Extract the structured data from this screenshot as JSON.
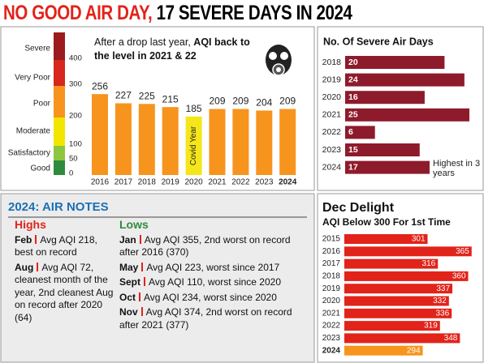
{
  "title": {
    "highlight": "NO GOOD AIR DAY,",
    "rest": "17 SEVERE DAYS IN 2024"
  },
  "chart_data": [
    {
      "type": "bar",
      "annotation": {
        "intro": "After a drop last year,",
        "highlight": "AQI back to the level in 2021 & 22"
      },
      "categories": [
        "2016",
        "2017",
        "2018",
        "2019",
        "2020",
        "2021",
        "2022",
        "2023",
        "2024"
      ],
      "values": [
        256,
        227,
        225,
        215,
        185,
        209,
        209,
        204,
        209
      ],
      "colors": [
        "#f7941d",
        "#f7941d",
        "#f7941d",
        "#f7941d",
        "#f5e61a",
        "#f7941d",
        "#f7941d",
        "#f7941d",
        "#f7941d"
      ],
      "bar_notes": [
        null,
        null,
        null,
        null,
        "Covid Year",
        null,
        null,
        null,
        null
      ],
      "ylim": [
        0,
        300
      ],
      "aqi_scale": {
        "categories": [
          "Severe",
          "Very Poor",
          "Poor",
          "Moderate",
          "Satisfactory",
          "Good"
        ],
        "thresholds": [
          400,
          300,
          200,
          100,
          50,
          0
        ],
        "colors": [
          "#9b1b1f",
          "#d7261e",
          "#f7941d",
          "#f2e600",
          "#8dc63f",
          "#2e8b3e"
        ]
      }
    },
    {
      "type": "barh",
      "title": "No. Of Severe Air Days",
      "categories": [
        "2018",
        "2019",
        "2020",
        "2021",
        "2022",
        "2023",
        "2024"
      ],
      "values": [
        20,
        24,
        16,
        25,
        6,
        15,
        17
      ],
      "color": "#8e1b2b",
      "xlim": [
        0,
        25
      ],
      "annotation": "Highest in 3 years"
    },
    {
      "type": "barh",
      "title": "Dec Delight",
      "subtitle": "AQI Below 300 For 1st Time",
      "categories": [
        "2015",
        "2016",
        "2017",
        "2018",
        "2019",
        "2020",
        "2021",
        "2022",
        "2023",
        "2024"
      ],
      "values": [
        301,
        365,
        316,
        360,
        337,
        332,
        336,
        319,
        348,
        294
      ],
      "colors": [
        "#e2231a",
        "#e2231a",
        "#e2231a",
        "#e2231a",
        "#e2231a",
        "#e2231a",
        "#e2231a",
        "#e2231a",
        "#e2231a",
        "#f7941d"
      ],
      "xlim": [
        180,
        370
      ]
    }
  ],
  "notes": {
    "heading": "2024: AIR NOTES",
    "highs": {
      "title": "Highs",
      "items": [
        {
          "month": "Feb",
          "text": "Avg AQI 218, best on record"
        },
        {
          "month": "Aug",
          "text": "Avg AQI 72, cleanest month of the year, 2nd cleanest Aug on record after 2020 (64)"
        }
      ]
    },
    "lows": {
      "title": "Lows",
      "items": [
        {
          "month": "Jan",
          "text": "Avg AQI 355, 2nd worst on record after 2016 (370)"
        },
        {
          "month": "May",
          "text": "Avg AQI 223, worst since 2017"
        },
        {
          "month": "Sept",
          "text": "Avg AQI 110, worst since 2020"
        },
        {
          "month": "Oct",
          "text": "Avg AQI 234, worst since 2020"
        },
        {
          "month": "Nov",
          "text": "Avg AQI 374, 2nd worst on record after 2021 (377)"
        }
      ]
    }
  }
}
